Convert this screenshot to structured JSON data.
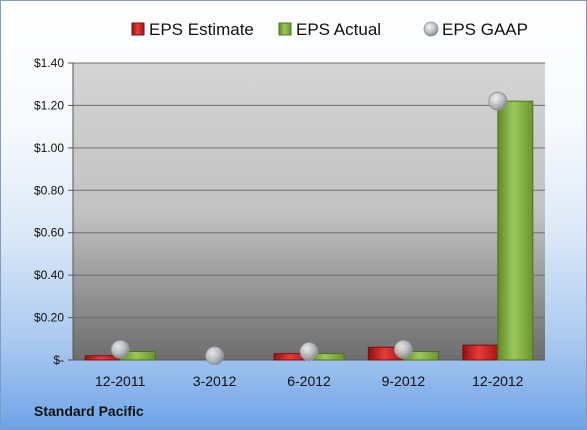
{
  "company": "Standard Pacific",
  "chart_data": {
    "type": "bar",
    "categories": [
      "12-2011",
      "3-2012",
      "6-2012",
      "9-2012",
      "12-2012"
    ],
    "series": [
      {
        "name": "EPS Estimate",
        "kind": "bar",
        "color": "#d42a2a",
        "values": [
          0.02,
          null,
          0.03,
          0.06,
          0.07
        ]
      },
      {
        "name": "EPS Actual",
        "kind": "bar",
        "color": "#8ab54a",
        "values": [
          0.04,
          null,
          0.03,
          0.04,
          1.22
        ]
      },
      {
        "name": "EPS GAAP",
        "kind": "marker",
        "color": "#b4b8bf",
        "values": [
          0.05,
          0.02,
          0.04,
          0.05,
          1.22
        ]
      }
    ],
    "y_ticks": [
      "$-",
      "$0.20",
      "$0.40",
      "$0.60",
      "$0.80",
      "$1.00",
      "$1.20",
      "$1.40"
    ],
    "ylim": [
      0,
      1.4
    ],
    "grid": true,
    "legend_position": "top"
  }
}
